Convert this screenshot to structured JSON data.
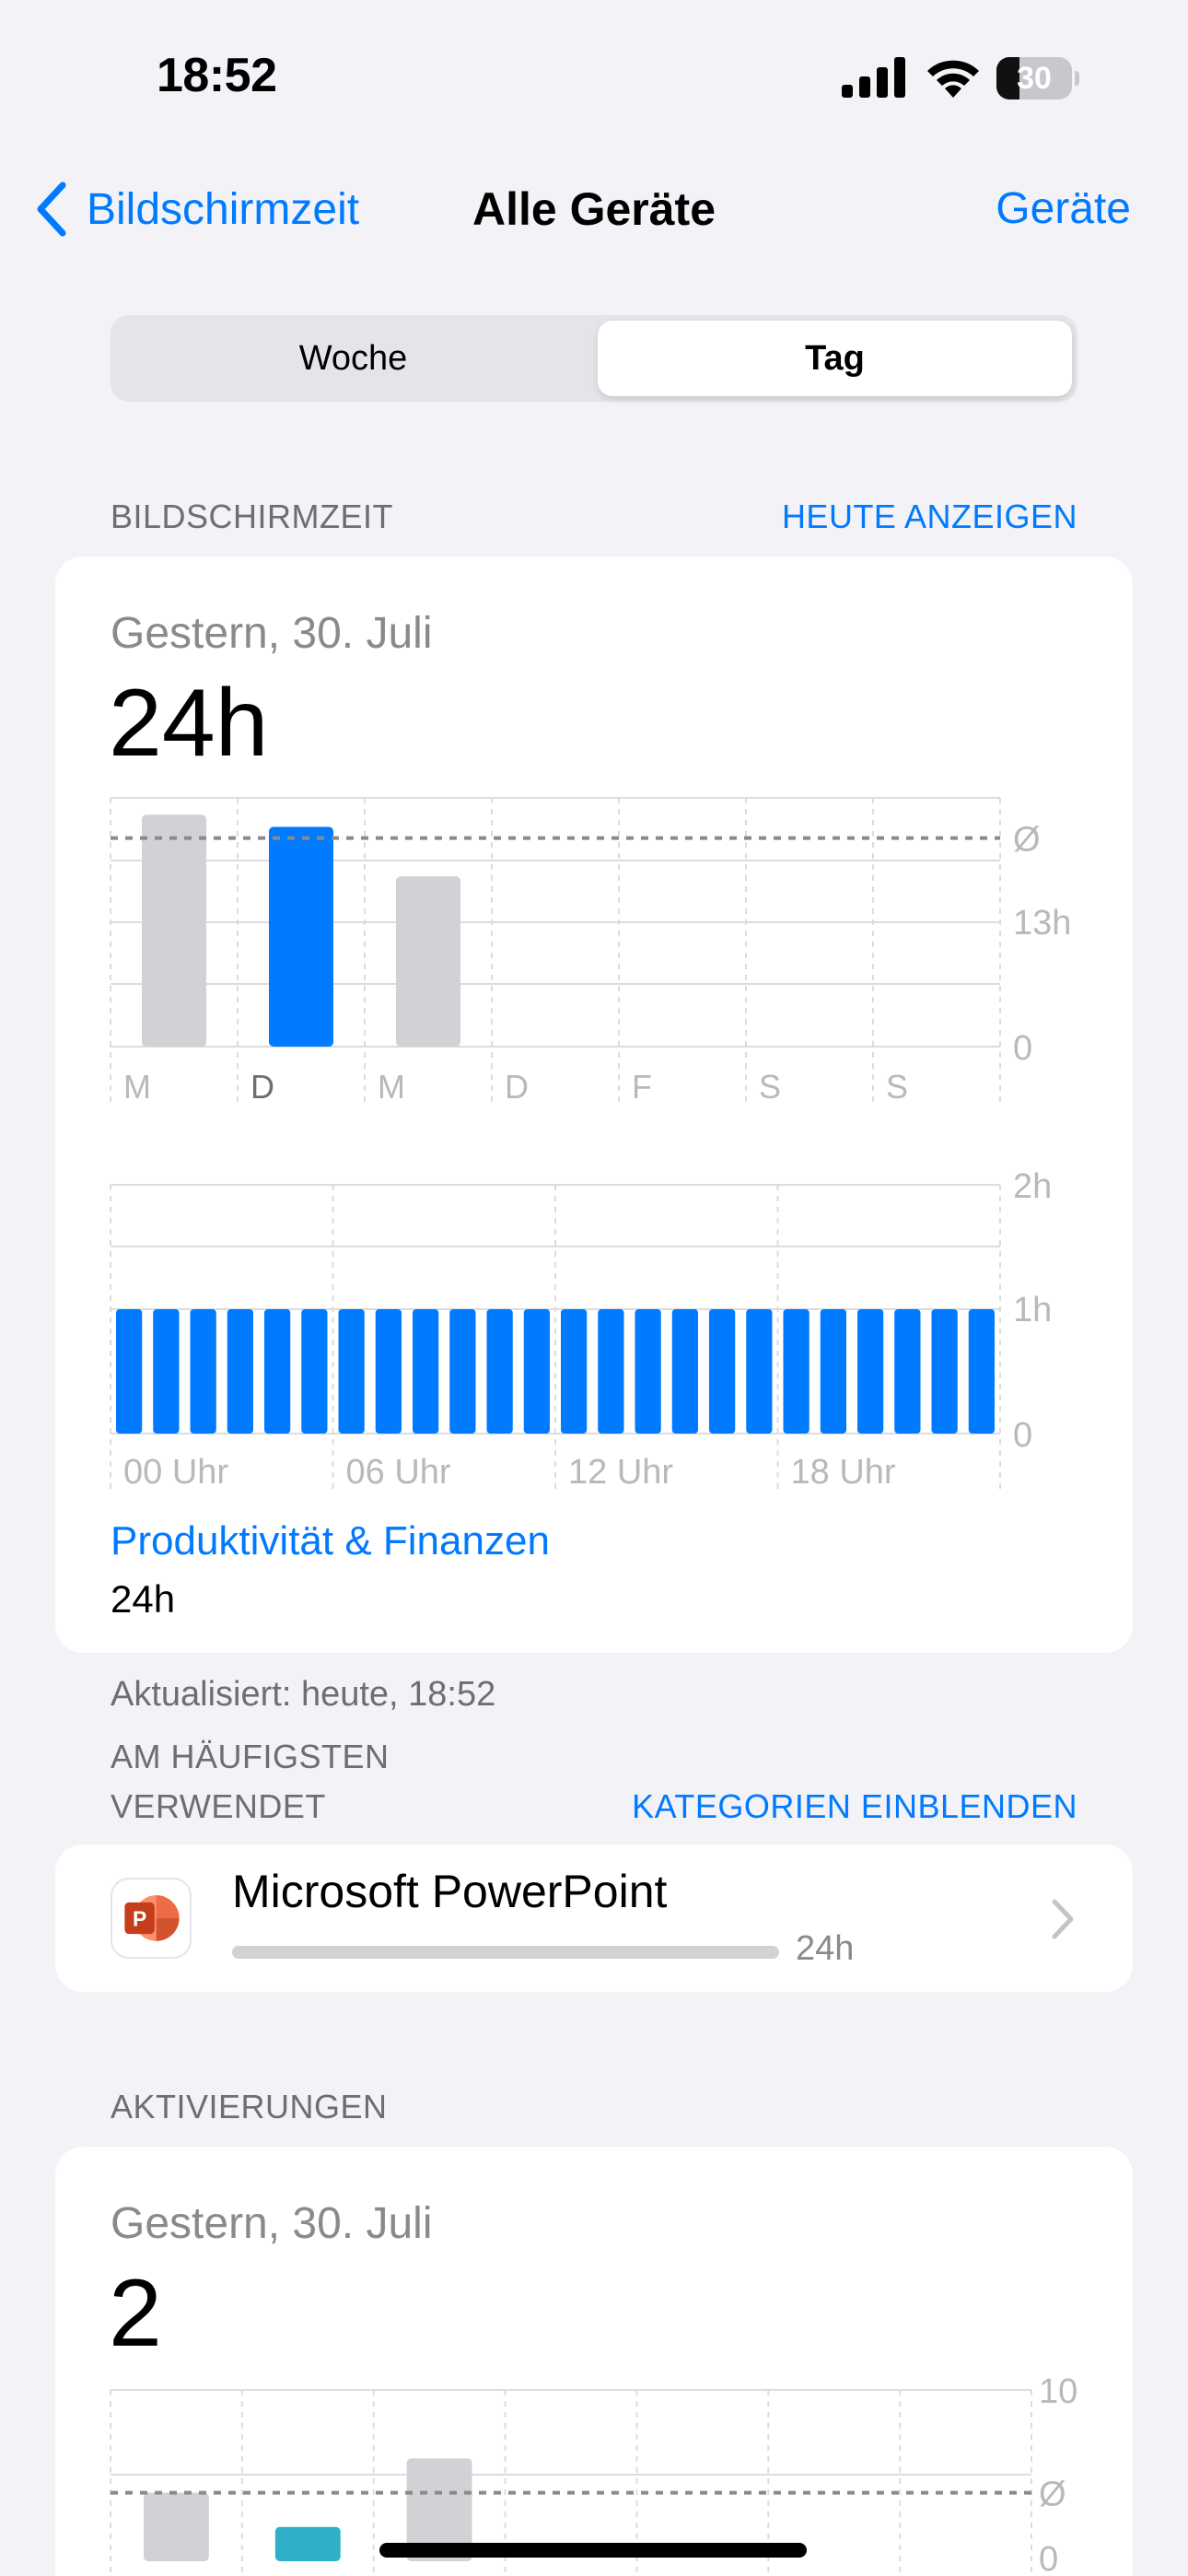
{
  "status_bar": {
    "time": "18:52",
    "battery_level": "30",
    "battery_fraction": 0.3
  },
  "nav": {
    "back_label": "Bildschirmzeit",
    "title": "Alle Geräte",
    "right_label": "Geräte"
  },
  "segmented": {
    "options": [
      "Woche",
      "Tag"
    ],
    "selected": "Tag"
  },
  "screen_time": {
    "section_title": "BILDSCHIRMZEIT",
    "section_action": "HEUTE ANZEIGEN",
    "date": "Gestern, 30. Juli",
    "total": "24h",
    "weekly_chart": {
      "type": "bar",
      "categories": [
        "M",
        "D",
        "M",
        "D",
        "F",
        "S",
        "S"
      ],
      "values_hours": [
        24.8,
        23.5,
        18.2,
        0,
        0,
        0,
        0
      ],
      "selected_index": 1,
      "average_hours": 22.3,
      "y_labels": [
        "Ø",
        "13h",
        "0"
      ]
    },
    "hourly_chart": {
      "type": "bar",
      "values_hours": [
        1,
        1,
        1,
        1,
        1,
        1,
        1,
        1,
        1,
        1,
        1,
        1,
        1,
        1,
        1,
        1,
        1,
        1,
        1,
        1,
        1,
        1,
        1,
        1
      ],
      "x_labels": [
        "00 Uhr",
        "06 Uhr",
        "12 Uhr",
        "18 Uhr"
      ],
      "y_labels": [
        "2h",
        "1h",
        "0"
      ],
      "ylim": [
        0,
        2
      ]
    },
    "category": {
      "name": "Produktivität & Finanzen",
      "value": "24h"
    },
    "updated": "Aktualisiert: heute, 18:52"
  },
  "most_used": {
    "section_title_line1": "AM HÄUFIGSTEN",
    "section_title_line2": "VERWENDET",
    "section_action": "KATEGORIEN EINBLENDEN",
    "apps": [
      {
        "name": "Microsoft PowerPoint",
        "time": "24h",
        "icon": "powerpoint-icon",
        "fraction": 1.0
      }
    ]
  },
  "pickups": {
    "section_title": "AKTIVIERUNGEN",
    "date": "Gestern, 30. Juli",
    "total": "2",
    "chart": {
      "type": "bar",
      "y_labels": [
        "10",
        "Ø",
        "0"
      ],
      "values": [
        4,
        2,
        6
      ],
      "average": 4,
      "ylim": [
        0,
        10
      ]
    }
  },
  "colors": {
    "accent": "#007aff",
    "bar_gray": "#d1d1d6",
    "teal": "#30b0c7",
    "powerpoint": "#d35230"
  }
}
